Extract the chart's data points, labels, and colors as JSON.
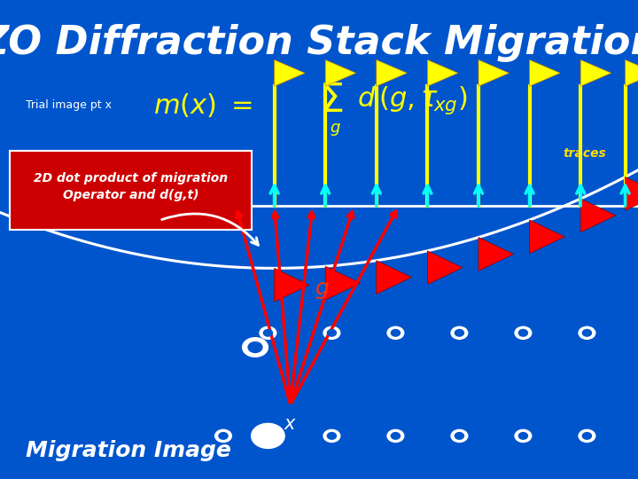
{
  "bg_color": "#0055cc",
  "title": "ZO Diffraction Stack Migration",
  "title_color": "white",
  "title_fontsize": 32,
  "trial_label": "Trial image pt x",
  "trial_color": "white",
  "traces_label": "traces",
  "traces_color": "#ffdd00",
  "migration_label": "Migration Image",
  "migration_color": "white",
  "formula_color": "#ffff00",
  "red_box_color": "#cc0000",
  "red_box_text_color": "white",
  "dot_color": "white"
}
